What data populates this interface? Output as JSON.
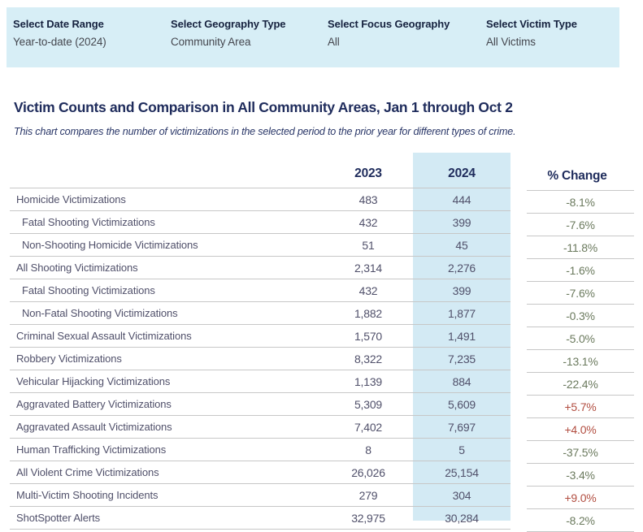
{
  "filters": {
    "items": [
      {
        "label": "Select Date Range",
        "value": "Year-to-date (2024)"
      },
      {
        "label": "Select Geography Type",
        "value": "Community Area"
      },
      {
        "label": "Select Focus Geography",
        "value": "All"
      },
      {
        "label": "Select Victim Type",
        "value": "All Victims"
      }
    ]
  },
  "header": {
    "title": "Victim Counts and Comparison in All Community Areas, Jan 1 through Oct 2",
    "subtitle": "This chart compares the number of victimizations in the selected period to the prior year for different types of crime."
  },
  "chart_data": {
    "type": "table",
    "title": "Victim Counts and Comparison in All Community Areas, Jan 1 through Oct 2",
    "columns": [
      "2023",
      "2024",
      "% Change"
    ],
    "highlighted_column": "2024",
    "rows": [
      {
        "label": "Homicide Victimizations",
        "indent": false,
        "v2023": "483",
        "v2024": "444",
        "change": "-8.1%",
        "trend": "neg"
      },
      {
        "label": "Fatal Shooting Victimizations",
        "indent": true,
        "v2023": "432",
        "v2024": "399",
        "change": "-7.6%",
        "trend": "neg"
      },
      {
        "label": "Non-Shooting Homicide Victimizations",
        "indent": true,
        "v2023": "51",
        "v2024": "45",
        "change": "-11.8%",
        "trend": "neg"
      },
      {
        "label": "All Shooting Victimizations",
        "indent": false,
        "v2023": "2,314",
        "v2024": "2,276",
        "change": "-1.6%",
        "trend": "neg"
      },
      {
        "label": "Fatal Shooting Victimizations",
        "indent": true,
        "v2023": "432",
        "v2024": "399",
        "change": "-7.6%",
        "trend": "neg"
      },
      {
        "label": "Non-Fatal Shooting Victimizations",
        "indent": true,
        "v2023": "1,882",
        "v2024": "1,877",
        "change": "-0.3%",
        "trend": "neg"
      },
      {
        "label": "Criminal Sexual Assault Victimizations",
        "indent": false,
        "v2023": "1,570",
        "v2024": "1,491",
        "change": "-5.0%",
        "trend": "neg"
      },
      {
        "label": "Robbery Victimizations",
        "indent": false,
        "v2023": "8,322",
        "v2024": "7,235",
        "change": "-13.1%",
        "trend": "neg"
      },
      {
        "label": "Vehicular Hijacking Victimizations",
        "indent": false,
        "v2023": "1,139",
        "v2024": "884",
        "change": "-22.4%",
        "trend": "neg"
      },
      {
        "label": "Aggravated Battery Victimizations",
        "indent": false,
        "v2023": "5,309",
        "v2024": "5,609",
        "change": "+5.7%",
        "trend": "pos"
      },
      {
        "label": "Aggravated Assault Victimizations",
        "indent": false,
        "v2023": "7,402",
        "v2024": "7,697",
        "change": "+4.0%",
        "trend": "pos"
      },
      {
        "label": "Human Trafficking Victimizations",
        "indent": false,
        "v2023": "8",
        "v2024": "5",
        "change": "-37.5%",
        "trend": "neg"
      },
      {
        "label": "All Violent Crime Victimizations",
        "indent": false,
        "v2023": "26,026",
        "v2024": "25,154",
        "change": "-3.4%",
        "trend": "neg"
      },
      {
        "label": "Multi-Victim Shooting Incidents",
        "indent": false,
        "v2023": "279",
        "v2024": "304",
        "change": "+9.0%",
        "trend": "pos"
      },
      {
        "label": "ShotSpotter Alerts",
        "indent": false,
        "v2023": "32,975",
        "v2024": "30,284",
        "change": "-8.2%",
        "trend": "neg"
      }
    ]
  },
  "colors": {
    "filter_bar_bg": "#d7eef6",
    "highlight_column_bg": "#d3eaf4",
    "heading_navy": "#1f2c5c",
    "row_text": "#50506a",
    "change_negative": "#6b7a5e",
    "change_positive": "#b24e41",
    "divider": "#c7c7c7"
  }
}
